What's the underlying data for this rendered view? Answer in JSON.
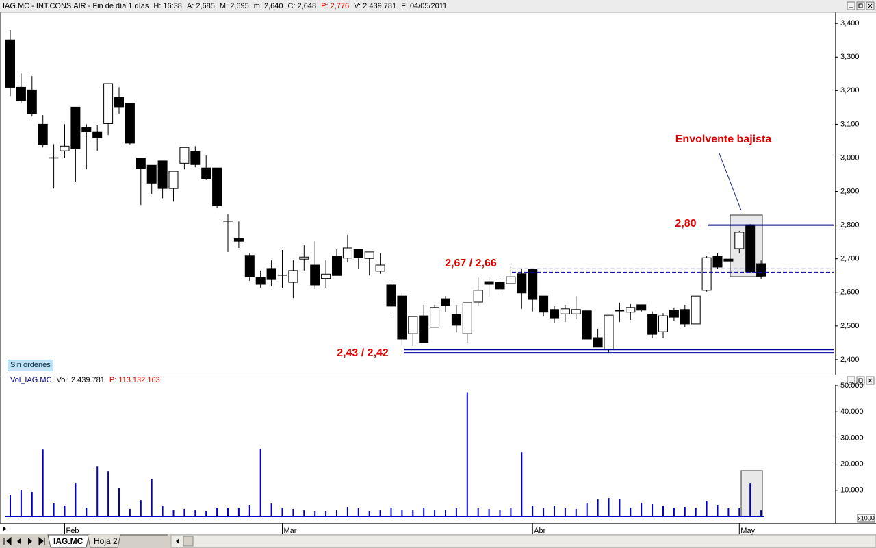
{
  "price_header": [
    "IAG.MC - INT.CONS.AIR - Fin de día 1 días",
    "H: 16:38",
    "A: 2,685",
    "M: 2,695",
    "m: 2,640",
    "C: 2,648",
    "P: 2,776",
    "V: 2.439.781",
    "F: 04/05/2011"
  ],
  "volume_header": [
    "Vol_IAG.MC",
    "Vol: 2.439.781",
    "P: 113.132.163"
  ],
  "orders_button": "Sin órdenes",
  "tabs": [
    "IAG.MC",
    "Hoja 2"
  ],
  "chart_data": [
    {
      "type": "candlestick",
      "open": [
        3.351,
        3.21,
        3.202,
        3.1,
        3.0,
        3.021,
        3.151,
        3.09,
        3.078,
        3.102,
        3.18,
        3.162,
        2.999,
        2.978,
        2.991,
        2.909,
        2.984,
        3.019,
        2.97,
        2.97,
        2.812,
        2.76,
        2.71,
        2.644,
        2.671,
        2.651,
        2.63,
        2.699,
        2.681,
        2.641,
        2.708,
        2.702,
        2.728,
        2.701,
        2.663,
        2.622,
        2.589,
        2.477,
        2.53,
        2.496,
        2.581,
        2.534,
        2.477,
        2.571,
        2.632,
        2.63,
        2.626,
        2.655,
        2.669,
        2.589,
        2.549,
        2.536,
        2.536,
        2.545,
        2.465,
        2.43,
        2.544,
        2.541,
        2.563,
        2.534,
        2.483,
        2.547,
        2.549,
        2.506,
        2.606,
        2.708,
        2.699,
        2.73,
        2.801,
        2.685
      ],
      "high": [
        3.38,
        3.251,
        3.243,
        3.127,
        3.041,
        3.1,
        3.151,
        3.1,
        3.097,
        3.221,
        3.21,
        3.162,
        2.999,
        2.978,
        2.991,
        2.96,
        3.031,
        3.035,
        3.007,
        2.97,
        2.832,
        2.811,
        2.716,
        2.665,
        2.695,
        2.726,
        2.695,
        2.74,
        2.752,
        2.695,
        2.728,
        2.771,
        2.728,
        2.72,
        2.716,
        2.63,
        2.598,
        2.528,
        2.563,
        2.563,
        2.589,
        2.563,
        2.569,
        2.644,
        2.646,
        2.642,
        2.679,
        2.671,
        2.669,
        2.589,
        2.559,
        2.563,
        2.589,
        2.545,
        2.492,
        2.532,
        2.569,
        2.565,
        2.563,
        2.543,
        2.538,
        2.555,
        2.563,
        2.589,
        2.708,
        2.716,
        2.699,
        2.783,
        2.803,
        2.695
      ],
      "low": [
        3.184,
        3.163,
        3.123,
        3.031,
        2.909,
        3.001,
        2.93,
        2.966,
        3.021,
        3.068,
        3.131,
        3.04,
        2.86,
        2.893,
        2.88,
        2.87,
        2.966,
        2.972,
        2.934,
        2.85,
        2.72,
        2.732,
        2.634,
        2.614,
        2.618,
        2.614,
        2.583,
        2.665,
        2.61,
        2.614,
        2.65,
        2.689,
        2.671,
        2.65,
        2.655,
        2.528,
        2.441,
        2.441,
        2.451,
        2.496,
        2.541,
        2.481,
        2.451,
        2.559,
        2.589,
        2.598,
        2.626,
        2.551,
        2.543,
        2.528,
        2.508,
        2.512,
        2.52,
        2.461,
        2.437,
        2.42,
        2.512,
        2.518,
        2.543,
        2.463,
        2.463,
        2.516,
        2.496,
        2.506,
        2.602,
        2.671,
        2.693,
        2.716,
        2.659,
        2.64
      ],
      "close": [
        3.21,
        3.171,
        3.131,
        3.039,
        3.0,
        3.035,
        3.027,
        3.078,
        3.06,
        3.221,
        3.152,
        3.044,
        2.968,
        2.925,
        2.909,
        2.96,
        3.031,
        2.98,
        2.938,
        2.858,
        2.811,
        2.752,
        2.646,
        2.624,
        2.638,
        2.65,
        2.665,
        2.705,
        2.622,
        2.654,
        2.65,
        2.732,
        2.703,
        2.72,
        2.681,
        2.559,
        2.461,
        2.528,
        2.451,
        2.555,
        2.561,
        2.502,
        2.569,
        2.606,
        2.624,
        2.61,
        2.646,
        2.598,
        2.579,
        2.541,
        2.524,
        2.551,
        2.549,
        2.461,
        2.437,
        2.532,
        2.545,
        2.555,
        2.547,
        2.475,
        2.53,
        2.526,
        2.506,
        2.589,
        2.703,
        2.675,
        2.693,
        2.779,
        2.661,
        2.648
      ],
      "ylim": [
        2.355,
        3.433
      ],
      "yticks": [
        {
          "value": 2.4,
          "label": "2,400"
        },
        {
          "value": 2.5,
          "label": "2,500"
        },
        {
          "value": 2.6,
          "label": "2,600"
        },
        {
          "value": 2.7,
          "label": "2,700"
        },
        {
          "value": 2.8,
          "label": "2,800"
        },
        {
          "value": 2.9,
          "label": "2,900"
        },
        {
          "value": 3.0,
          "label": "3,000"
        },
        {
          "value": 3.1,
          "label": "3,100"
        },
        {
          "value": 3.2,
          "label": "3,200"
        },
        {
          "value": 3.3,
          "label": "3,300"
        },
        {
          "value": 3.4,
          "label": "3,400"
        }
      ],
      "annotations": [
        {
          "text": "Envolvente bajista"
        },
        {
          "text": "2,80",
          "values": [
            2.8
          ]
        },
        {
          "text": "2,67 / 2,66",
          "values": [
            2.67,
            2.66
          ]
        },
        {
          "text": "2,43 / 2,42",
          "values": [
            2.43,
            2.42
          ]
        }
      ]
    },
    {
      "type": "bar",
      "categories": [
        null,
        null,
        null,
        null,
        null,
        "Feb",
        null,
        null,
        null,
        null,
        null,
        null,
        null,
        null,
        null,
        null,
        null,
        null,
        null,
        null,
        null,
        null,
        null,
        null,
        null,
        "Mar",
        null,
        null,
        null,
        null,
        null,
        null,
        null,
        null,
        null,
        null,
        null,
        null,
        null,
        null,
        null,
        null,
        null,
        null,
        null,
        null,
        null,
        null,
        "Abr",
        null,
        null,
        null,
        null,
        null,
        null,
        null,
        null,
        null,
        null,
        null,
        null,
        null,
        null,
        null,
        null,
        null,
        null,
        "May",
        null,
        null
      ],
      "values": [
        8350,
        10200,
        9400,
        25600,
        5000,
        4200,
        12800,
        3400,
        19050,
        17200,
        10950,
        2900,
        6250,
        14350,
        4200,
        2350,
        2900,
        2350,
        2100,
        3400,
        3400,
        3150,
        4450,
        25850,
        4950,
        3150,
        2900,
        2350,
        2100,
        2100,
        2350,
        3650,
        3150,
        2100,
        2350,
        3400,
        2600,
        2350,
        3400,
        2600,
        2350,
        3150,
        47500,
        3150,
        2900,
        2350,
        3400,
        24550,
        4200,
        3400,
        4200,
        3150,
        2900,
        5200,
        6550,
        7050,
        6800,
        3400,
        5200,
        4700,
        4200,
        3400,
        3650,
        3150,
        6000,
        4450,
        3150,
        3150,
        12800,
        2440
      ],
      "color": "#0000c8",
      "unit_label": "x1000",
      "ylim": [
        0,
        50000
      ],
      "yticks": [
        {
          "value": 10000,
          "label": "10.000"
        },
        {
          "value": 20000,
          "label": "20.000"
        },
        {
          "value": 30000,
          "label": "30.000"
        },
        {
          "value": 40000,
          "label": "40.000"
        },
        {
          "value": 50000,
          "label": "50.000"
        }
      ]
    }
  ]
}
